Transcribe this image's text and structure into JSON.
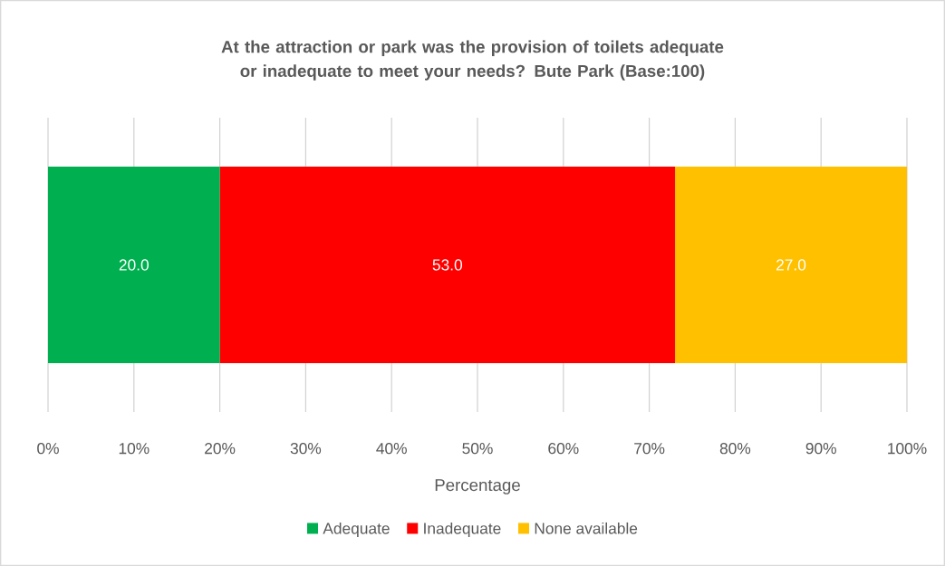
{
  "chart_data": {
    "type": "bar",
    "orientation": "horizontal",
    "stacked": true,
    "title": "At the attraction or park was the provision of toilets adequate or inadequate to meet your needs? Bute Park (Base:100)",
    "xlabel": "Percentage",
    "categories": [
      null
    ],
    "series": [
      {
        "name": "Adequate",
        "color": "#00b050",
        "values": [
          20
        ],
        "value_labels": [
          "20.0"
        ]
      },
      {
        "name": "Inadequate",
        "color": "#ff0000",
        "values": [
          53
        ],
        "value_labels": [
          "53.0"
        ]
      },
      {
        "name": "None available",
        "color": "#ffc000",
        "values": [
          27
        ],
        "value_labels": [
          "27.0"
        ]
      }
    ],
    "xlim": [
      0,
      100
    ],
    "xticks": [
      {
        "value": 0,
        "label": "0%"
      },
      {
        "value": 10,
        "label": "10%"
      },
      {
        "value": 20,
        "label": "20%"
      },
      {
        "value": 30,
        "label": "30%"
      },
      {
        "value": 40,
        "label": "40%"
      },
      {
        "value": 50,
        "label": "50%"
      },
      {
        "value": 60,
        "label": "60%"
      },
      {
        "value": 70,
        "label": "70%"
      },
      {
        "value": 80,
        "label": "80%"
      },
      {
        "value": 90,
        "label": "90%"
      },
      {
        "value": 100,
        "label": "100%"
      }
    ],
    "grid": "x",
    "legend": "bottom"
  }
}
